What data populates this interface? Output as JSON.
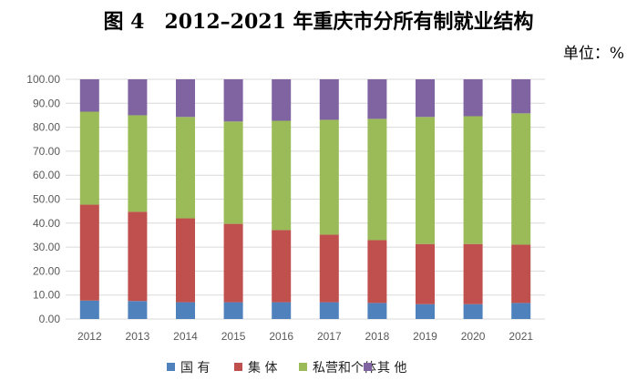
{
  "chart_data": {
    "type": "bar",
    "stacked": true,
    "title": "图 4　2012–2021 年重庆市分所有制就业结构",
    "unit_label": "单位：%",
    "categories": [
      "2012",
      "2013",
      "2014",
      "2015",
      "2016",
      "2017",
      "2018",
      "2019",
      "2020",
      "2021"
    ],
    "series": [
      {
        "name": "国 有",
        "color": "#4F81BD",
        "values": [
          7.7,
          7.5,
          7.0,
          7.0,
          7.0,
          7.0,
          6.7,
          6.2,
          6.2,
          6.7
        ]
      },
      {
        "name": "集 体",
        "color": "#C0504D",
        "values": [
          40.0,
          37.2,
          35.0,
          32.7,
          30.1,
          28.2,
          26.2,
          25.1,
          25.1,
          24.3
        ]
      },
      {
        "name": "私营和个体",
        "color": "#9BBB59",
        "values": [
          38.8,
          40.3,
          42.3,
          42.7,
          45.6,
          47.9,
          50.6,
          53.0,
          53.3,
          54.8
        ]
      },
      {
        "name": "其 他",
        "color": "#8064A2",
        "values": [
          13.5,
          15.0,
          15.7,
          17.6,
          17.3,
          16.9,
          16.5,
          15.7,
          15.4,
          14.2
        ]
      }
    ],
    "ylim": [
      0,
      100
    ],
    "yticks": [
      "0.00",
      "10.00",
      "20.00",
      "30.00",
      "40.00",
      "50.00",
      "60.00",
      "70.00",
      "80.00",
      "90.00",
      "100.00"
    ],
    "grid": true,
    "legend_position": "bottom"
  }
}
